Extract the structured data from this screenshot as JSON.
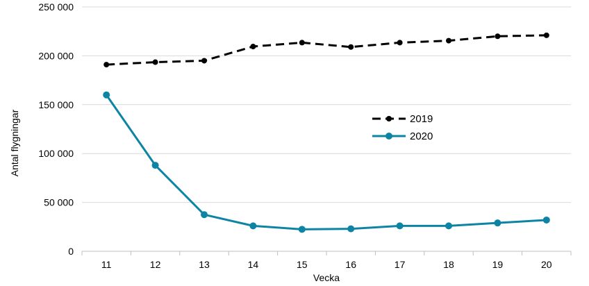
{
  "chart_data": {
    "type": "line",
    "title": "",
    "xlabel": "Vecka",
    "ylabel": "Antal flygningar",
    "categories": [
      "11",
      "12",
      "13",
      "14",
      "15",
      "16",
      "17",
      "18",
      "19",
      "20"
    ],
    "ylim": [
      0,
      250000
    ],
    "yticks": [
      {
        "value": 0,
        "label": "0"
      },
      {
        "value": 50000,
        "label": "50 000"
      },
      {
        "value": 100000,
        "label": "100 000"
      },
      {
        "value": 150000,
        "label": "150 000"
      },
      {
        "value": 200000,
        "label": "200 000"
      },
      {
        "value": 250000,
        "label": "250 000"
      }
    ],
    "grid": true,
    "legend_position": "center-right",
    "series": [
      {
        "name": "2019",
        "color": "#000000",
        "line_style": "dashed",
        "values": [
          191000,
          193500,
          195000,
          209500,
          213500,
          209000,
          213500,
          215500,
          220000,
          221000
        ]
      },
      {
        "name": "2020",
        "color": "#0e84a5",
        "line_style": "solid",
        "values": [
          160000,
          88000,
          37500,
          26000,
          22500,
          23000,
          26000,
          26000,
          29000,
          32000
        ]
      }
    ]
  }
}
